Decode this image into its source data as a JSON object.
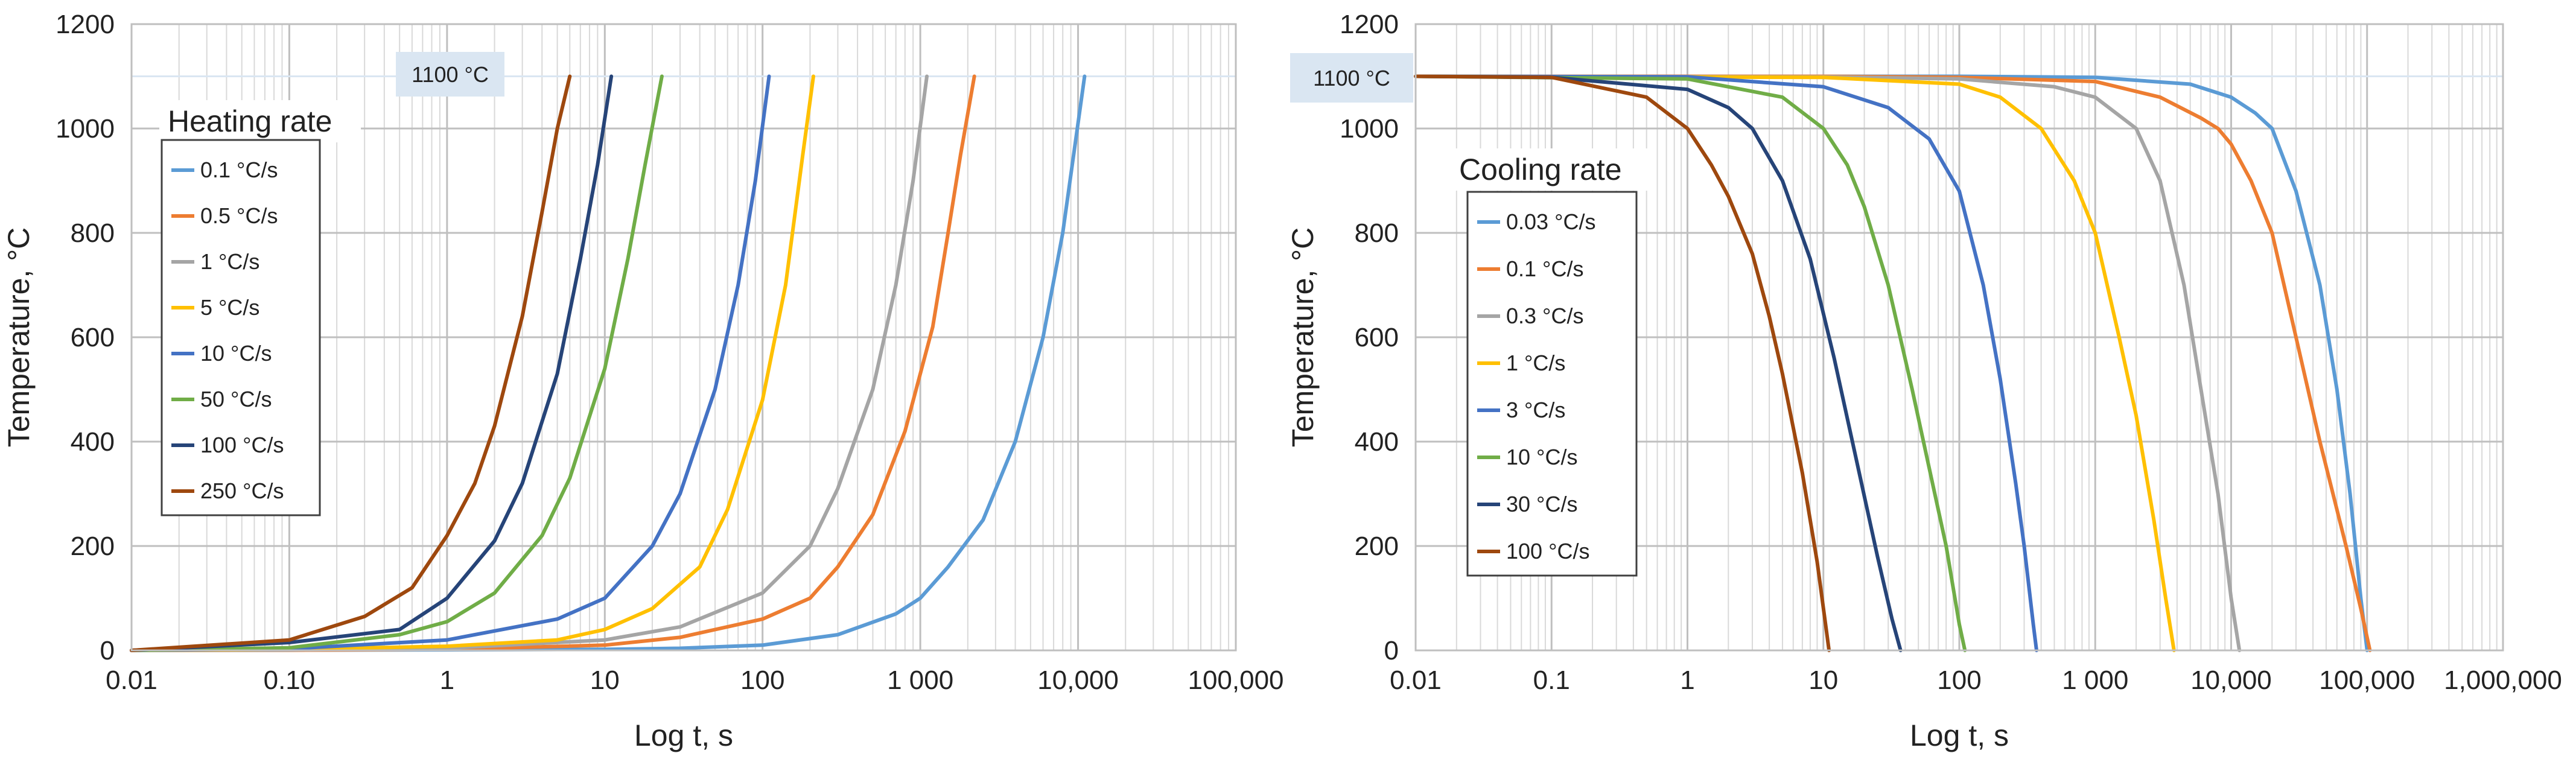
{
  "chart_data": [
    {
      "type": "line",
      "title": "",
      "xlabel": "Log t, s",
      "ylabel": "Temperature, °C",
      "x_scale": "log",
      "xlim": [
        0.01,
        100000
      ],
      "ylim": [
        0,
        1200
      ],
      "x_ticks": [
        0.01,
        0.1,
        1,
        10,
        100,
        1000,
        10000,
        100000
      ],
      "x_tick_labels": [
        "0.01",
        "0.10",
        "1",
        "10",
        "100",
        "1 000",
        "10,000",
        "100,000"
      ],
      "y_ticks": [
        0,
        200,
        400,
        600,
        800,
        1000,
        1200
      ],
      "y_tick_labels": [
        "0",
        "200",
        "400",
        "600",
        "800",
        "1000",
        "1200"
      ],
      "grid": true,
      "legend_title": "Heating rate",
      "legend_position": "upper-left",
      "annotation": "1100 °C",
      "series": [
        {
          "name": "0.1 °C/s",
          "color": "#5b9bd5",
          "x": [
            0.01,
            0.1,
            1,
            10,
            30,
            100,
            300,
            700,
            1000,
            1500,
            2500,
            4000,
            6000,
            8000,
            11000
          ],
          "y": [
            0,
            0.5,
            1,
            2,
            4,
            10,
            30,
            70,
            100,
            160,
            250,
            400,
            600,
            800,
            1100
          ]
        },
        {
          "name": "0.5 °C/s",
          "color": "#ed7d31",
          "x": [
            0.01,
            0.1,
            1,
            10,
            30,
            100,
            200,
            300,
            500,
            800,
            1200,
            1500,
            1800,
            2200
          ],
          "y": [
            0,
            0.5,
            2,
            10,
            25,
            60,
            100,
            160,
            260,
            420,
            620,
            800,
            950,
            1100
          ]
        },
        {
          "name": "1 °C/s",
          "color": "#a5a5a5",
          "x": [
            0.01,
            0.1,
            1,
            10,
            30,
            100,
            200,
            300,
            500,
            700,
            900,
            1100
          ],
          "y": [
            0,
            1,
            4,
            20,
            45,
            110,
            200,
            310,
            500,
            700,
            900,
            1100
          ]
        },
        {
          "name": "5 °C/s",
          "color": "#ffc000",
          "x": [
            0.01,
            0.1,
            1,
            5,
            10,
            20,
            40,
            60,
            100,
            140,
            180,
            210
          ],
          "y": [
            0,
            2,
            8,
            20,
            40,
            80,
            160,
            270,
            480,
            700,
            950,
            1100
          ]
        },
        {
          "name": "10 °C/s",
          "color": "#4472c4",
          "x": [
            0.01,
            0.1,
            1,
            5,
            10,
            20,
            30,
            50,
            70,
            90,
            110
          ],
          "y": [
            0,
            3,
            20,
            60,
            100,
            200,
            300,
            500,
            700,
            900,
            1100
          ]
        },
        {
          "name": "50 °C/s",
          "color": "#70ad47",
          "x": [
            0.01,
            0.1,
            0.5,
            1,
            2,
            4,
            6,
            10,
            14,
            18,
            23
          ],
          "y": [
            0,
            5,
            30,
            55,
            110,
            220,
            330,
            540,
            750,
            930,
            1100
          ]
        },
        {
          "name": "100 °C/s",
          "color": "#264478",
          "x": [
            0.01,
            0.1,
            0.5,
            1,
            2,
            3,
            5,
            7,
            9,
            11
          ],
          "y": [
            0,
            15,
            40,
            100,
            210,
            320,
            530,
            750,
            930,
            1100
          ]
        },
        {
          "name": "250 °C/s",
          "color": "#9e480e",
          "x": [
            0.01,
            0.1,
            0.3,
            0.6,
            1,
            1.5,
            2,
            3,
            4,
            5,
            6
          ],
          "y": [
            0,
            20,
            65,
            120,
            220,
            320,
            430,
            640,
            840,
            1000,
            1100
          ]
        }
      ]
    },
    {
      "type": "line",
      "title": "",
      "xlabel": "Log t, s",
      "ylabel": "Temperature, °C",
      "x_scale": "log",
      "xlim": [
        0.01,
        1000000
      ],
      "ylim": [
        0,
        1200
      ],
      "x_ticks": [
        0.01,
        0.1,
        1,
        10,
        100,
        1000,
        10000,
        100000,
        1000000
      ],
      "x_tick_labels": [
        "0.01",
        "0.1",
        "1",
        "10",
        "100",
        "1 000",
        "10,000",
        "100,000",
        "1,000,000"
      ],
      "y_ticks": [
        0,
        200,
        400,
        600,
        800,
        1000,
        1200
      ],
      "y_tick_labels": [
        "0",
        "200",
        "400",
        "600",
        "800",
        "1000",
        "1200"
      ],
      "grid": true,
      "legend_title": "Cooling rate",
      "legend_position": "left",
      "annotation": "1100 °C",
      "series": [
        {
          "name": "0.03 °C/s",
          "color": "#5b9bd5",
          "x": [
            0.01,
            100,
            1000,
            5000,
            10000,
            15000,
            20000,
            30000,
            45000,
            60000,
            75000,
            90000,
            100000
          ],
          "y": [
            1100,
            1100,
            1098,
            1085,
            1060,
            1030,
            1000,
            880,
            700,
            500,
            300,
            100,
            0
          ]
        },
        {
          "name": "0.1 °C/s",
          "color": "#ed7d31",
          "x": [
            0.01,
            10,
            100,
            1000,
            3000,
            6000,
            8000,
            10000,
            14000,
            20000,
            30000,
            45000,
            70000,
            90000,
            105000
          ],
          "y": [
            1100,
            1100,
            1098,
            1090,
            1060,
            1020,
            1000,
            970,
            900,
            800,
            600,
            400,
            200,
            80,
            0
          ]
        },
        {
          "name": "0.3 °C/s",
          "color": "#a5a5a5",
          "x": [
            0.01,
            10,
            100,
            500,
            1000,
            2000,
            3000,
            4500,
            6000,
            8000,
            10000,
            11500
          ],
          "y": [
            1100,
            1099,
            1095,
            1080,
            1060,
            1000,
            900,
            700,
            500,
            300,
            100,
            0
          ]
        },
        {
          "name": "1 °C/s",
          "color": "#ffc000",
          "x": [
            0.01,
            10,
            100,
            200,
            400,
            700,
            1000,
            1500,
            2000,
            2700,
            3300,
            3800
          ],
          "y": [
            1100,
            1098,
            1085,
            1060,
            1000,
            900,
            800,
            600,
            450,
            250,
            100,
            0
          ]
        },
        {
          "name": "3 °C/s",
          "color": "#4472c4",
          "x": [
            0.01,
            1,
            10,
            30,
            60,
            100,
            150,
            200,
            260,
            300,
            350,
            370
          ],
          "y": [
            1100,
            1099,
            1080,
            1040,
            980,
            880,
            700,
            520,
            320,
            200,
            50,
            0
          ]
        },
        {
          "name": "10 °C/s",
          "color": "#70ad47",
          "x": [
            0.01,
            1,
            5,
            10,
            15,
            20,
            30,
            45,
            60,
            80,
            100,
            110
          ],
          "y": [
            1100,
            1095,
            1060,
            1000,
            930,
            850,
            700,
            500,
            350,
            200,
            50,
            0
          ]
        },
        {
          "name": "30 °C/s",
          "color": "#264478",
          "x": [
            0.01,
            0.1,
            1,
            2,
            3,
            5,
            8,
            12,
            18,
            25,
            32,
            37
          ],
          "y": [
            1100,
            1098,
            1075,
            1040,
            1000,
            900,
            750,
            560,
            350,
            180,
            60,
            0
          ]
        },
        {
          "name": "100 °C/s",
          "color": "#9e480e",
          "x": [
            0.01,
            0.1,
            0.5,
            1,
            1.5,
            2,
            3,
            4,
            5,
            7,
            9,
            10.5,
            11
          ],
          "y": [
            1100,
            1098,
            1060,
            1000,
            930,
            870,
            760,
            640,
            530,
            340,
            170,
            40,
            0
          ]
        }
      ]
    }
  ]
}
